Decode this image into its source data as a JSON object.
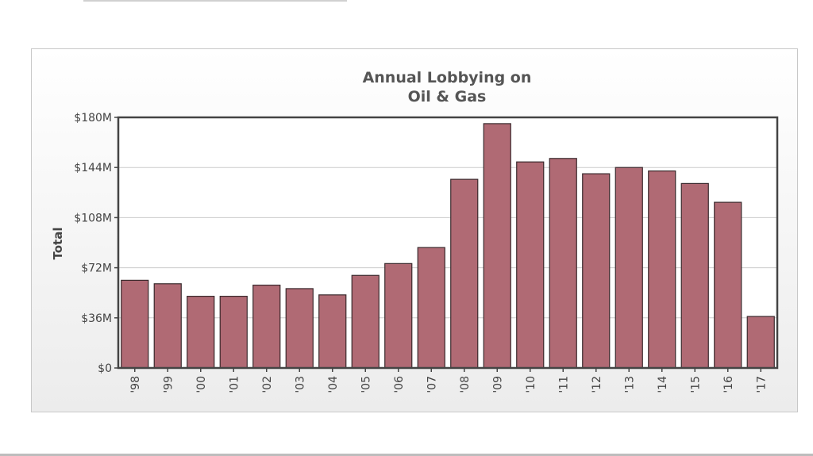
{
  "chart_data": {
    "type": "bar",
    "title": [
      "Annual Lobbying on",
      "Oil & Gas"
    ],
    "xlabel": "",
    "ylabel": "Total",
    "ylim": [
      0,
      180
    ],
    "yticks": [
      0,
      36,
      72,
      108,
      144,
      180
    ],
    "ytick_labels": [
      "$0",
      "$36M",
      "$72M",
      "$108M",
      "$144M",
      "$180M"
    ],
    "grid": true,
    "legend": "none",
    "categories": [
      "'98",
      "'99",
      "'00",
      "'01",
      "'02",
      "'03",
      "'04",
      "'05",
      "'06",
      "'07",
      "'08",
      "'09",
      "'10",
      "'11",
      "'12",
      "'13",
      "'14",
      "'15",
      "'16",
      "'17"
    ],
    "values": [
      63,
      60.5,
      51.5,
      51.5,
      59.5,
      57,
      52.5,
      66.5,
      75,
      86.5,
      135.5,
      175.5,
      148,
      150.5,
      139.5,
      144,
      141.5,
      132.5,
      119,
      37
    ],
    "colors": {
      "bar_fill": "#b06a74",
      "bar_stroke": "#3a2a2d",
      "axis": "#444444",
      "grid": "#cccccc"
    }
  }
}
